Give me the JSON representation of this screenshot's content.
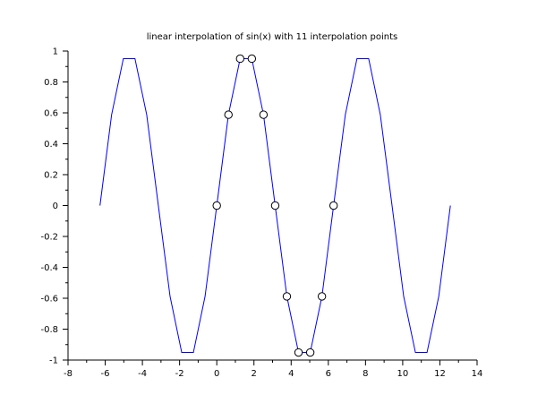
{
  "chart_data": {
    "type": "line",
    "title": "linear interpolation of sin(x) with 11 interpolation points",
    "xlabel": "",
    "ylabel": "",
    "xlim": [
      -8,
      14
    ],
    "ylim": [
      -1,
      1
    ],
    "x_ticks": [
      "-8",
      "-6",
      "-4",
      "-2",
      "0",
      "2",
      "4",
      "6",
      "8",
      "10",
      "12",
      "14"
    ],
    "y_ticks": [
      "1",
      "0.8",
      "0.6",
      "0.4",
      "0.2",
      "0",
      "-0.2",
      "-0.4",
      "-0.6",
      "-0.8",
      "-1"
    ],
    "grid": false,
    "series": [
      {
        "color": "#0000ff",
        "x": [
          -6.283,
          -5.655,
          -5.027,
          -4.398,
          -3.77,
          -3.142,
          -2.513,
          -1.885,
          -1.257,
          -0.628,
          0.0,
          0.628,
          1.257,
          1.885,
          2.513,
          3.142,
          3.77,
          4.398,
          5.027,
          5.655,
          6.283,
          6.912,
          7.54,
          8.168,
          8.796,
          9.425,
          10.053,
          10.681,
          11.31,
          11.938,
          12.566
        ],
        "y": [
          0.0,
          0.588,
          0.951,
          0.951,
          0.588,
          0.0,
          -0.588,
          -0.951,
          -0.951,
          -0.588,
          0.0,
          0.588,
          0.951,
          0.951,
          0.588,
          0.0,
          -0.588,
          -0.951,
          -0.951,
          -0.588,
          0.0,
          0.588,
          0.951,
          0.951,
          0.588,
          0.0,
          -0.588,
          -0.951,
          -0.951,
          -0.588,
          0.0
        ]
      },
      {
        "type": "scatter",
        "marker": "circle",
        "color": "#000000",
        "x": [
          0.0,
          0.628,
          1.257,
          1.885,
          2.513,
          3.142,
          3.77,
          4.398,
          5.027,
          5.655,
          6.283
        ],
        "y": [
          0.0,
          0.588,
          0.951,
          0.951,
          0.588,
          0.0,
          -0.588,
          -0.951,
          -0.951,
          -0.588,
          0.0
        ]
      }
    ]
  }
}
